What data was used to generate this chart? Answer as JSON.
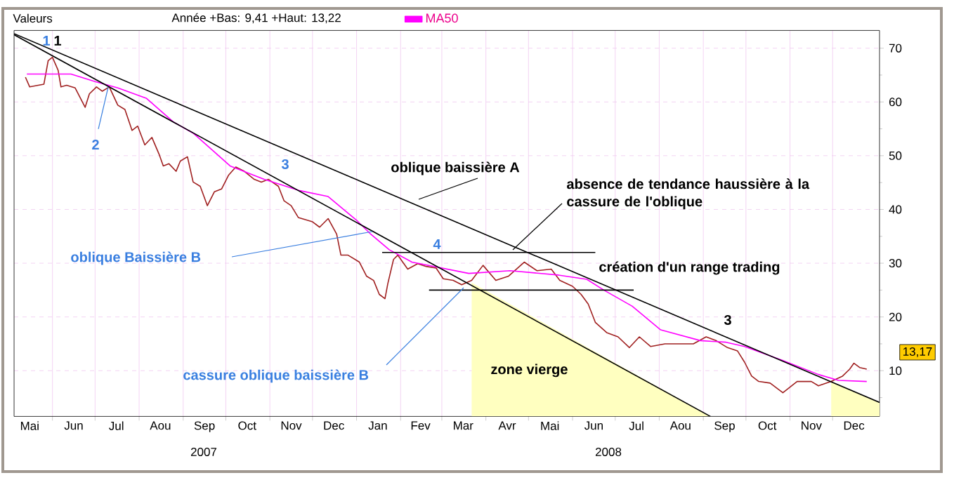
{
  "chart_data": {
    "type": "line",
    "xlim": [
      "2007-05-05",
      "2009-01-03"
    ],
    "ylim": [
      1.5,
      73.3
    ],
    "xticks": [
      {
        "value": "2007-05-16",
        "label": "Mai"
      },
      {
        "value": "2007-06-01",
        "label": null
      },
      {
        "value": "2007-06-16",
        "label": "Jun"
      },
      {
        "value": "2007-07-01",
        "label": null
      },
      {
        "value": "2007-07-16",
        "label": "Jul"
      },
      {
        "value": "2007-08-01",
        "label": null
      },
      {
        "value": "2007-08-16",
        "label": "Aou"
      },
      {
        "value": "2007-09-01",
        "label": null
      },
      {
        "value": "2007-09-16",
        "label": "Sep"
      },
      {
        "value": "2007-10-01",
        "label": null
      },
      {
        "value": "2007-10-16",
        "label": "Oct"
      },
      {
        "value": "2007-11-01",
        "label": null
      },
      {
        "value": "2007-11-16",
        "label": "Nov"
      },
      {
        "value": "2007-12-01",
        "label": null
      },
      {
        "value": "2007-12-16",
        "label": "Dec"
      },
      {
        "value": "2008-01-01",
        "label": null
      },
      {
        "value": "2008-01-16",
        "label": "Jan"
      },
      {
        "value": "2008-02-01",
        "label": null
      },
      {
        "value": "2008-02-15",
        "label": "Fev"
      },
      {
        "value": "2008-03-01",
        "label": null
      },
      {
        "value": "2008-03-16",
        "label": "Mar"
      },
      {
        "value": "2008-04-01",
        "label": null
      },
      {
        "value": "2008-04-16",
        "label": "Avr"
      },
      {
        "value": "2008-05-01",
        "label": null
      },
      {
        "value": "2008-05-16",
        "label": "Mai"
      },
      {
        "value": "2008-06-01",
        "label": null
      },
      {
        "value": "2008-06-16",
        "label": "Jun"
      },
      {
        "value": "2008-07-01",
        "label": null
      },
      {
        "value": "2008-07-16",
        "label": "Jul"
      },
      {
        "value": "2008-08-01",
        "label": null
      },
      {
        "value": "2008-08-16",
        "label": "Aou"
      },
      {
        "value": "2008-09-01",
        "label": null
      },
      {
        "value": "2008-09-16",
        "label": "Sep"
      },
      {
        "value": "2008-10-01",
        "label": null
      },
      {
        "value": "2008-10-16",
        "label": "Oct"
      },
      {
        "value": "2008-11-01",
        "label": null
      },
      {
        "value": "2008-11-16",
        "label": "Nov"
      },
      {
        "value": "2008-12-01",
        "label": null
      },
      {
        "value": "2008-12-16",
        "label": "Dec"
      }
    ],
    "yticks": [
      {
        "value": 5,
        "label": null
      },
      10,
      {
        "value": 15,
        "label": null
      },
      20,
      {
        "value": 25,
        "label": null
      },
      30,
      {
        "value": 35,
        "label": null
      },
      40,
      {
        "value": 45,
        "label": null
      },
      50,
      {
        "value": 55,
        "label": null
      },
      60,
      {
        "value": 65,
        "label": null
      },
      70
    ],
    "grid": true,
    "legend": "top",
    "series": [
      {
        "type": "area",
        "color": "#ffffc0",
        "x": [
          "2008-03-22",
          "2008-09-06"
        ],
        "values": [
          26.4,
          1.5
        ]
      },
      {
        "type": "area",
        "color": "#ffffc0",
        "x": [
          "2008-11-30",
          "2009-01-03"
        ],
        "values": [
          7.9,
          4.1
        ]
      },
      {
        "color": "#a02020",
        "x": [
          "2007-05-13",
          "2007-05-16",
          "2007-05-26",
          "2007-05-29",
          "2007-06-01",
          "2007-06-05",
          "2007-06-07",
          "2007-06-11",
          "2007-06-17",
          "2007-06-24",
          "2007-06-27",
          "2007-07-02",
          "2007-07-06",
          "2007-07-11",
          "2007-07-17",
          "2007-07-22",
          "2007-07-27",
          "2007-07-31",
          "2007-08-05",
          "2007-08-10",
          "2007-08-15",
          "2007-08-18",
          "2007-08-22",
          "2007-08-27",
          "2007-08-30",
          "2007-09-04",
          "2007-09-08",
          "2007-09-13",
          "2007-09-18",
          "2007-09-23",
          "2007-09-28",
          "2007-10-03",
          "2007-10-08",
          "2007-10-14",
          "2007-10-21",
          "2007-10-26",
          "2007-10-31",
          "2007-11-07",
          "2007-11-11",
          "2007-11-16",
          "2007-11-21",
          "2007-11-26",
          "2007-12-01",
          "2007-12-06",
          "2007-12-12",
          "2007-12-18",
          "2007-12-21",
          "2007-12-26",
          "2008-01-03",
          "2008-01-08",
          "2008-01-13",
          "2008-01-17",
          "2008-01-21",
          "2008-01-23",
          "2008-01-27",
          "2008-01-30",
          "2008-02-06",
          "2008-02-13",
          "2008-02-19",
          "2008-02-26",
          "2008-03-02",
          "2008-03-09",
          "2008-03-15",
          "2008-03-22",
          "2008-03-30",
          "2008-04-08",
          "2008-04-17",
          "2008-04-28",
          "2008-05-07",
          "2008-05-17",
          "2008-05-23",
          "2008-06-01",
          "2008-06-07",
          "2008-06-12",
          "2008-06-17",
          "2008-06-25",
          "2008-07-03",
          "2008-07-11",
          "2008-07-18",
          "2008-07-26",
          "2008-08-05",
          "2008-08-15",
          "2008-08-25",
          "2008-09-03",
          "2008-09-10",
          "2008-09-18",
          "2008-09-25",
          "2008-09-30",
          "2008-10-05",
          "2008-10-10",
          "2008-10-18",
          "2008-10-27",
          "2008-11-06",
          "2008-11-16",
          "2008-11-21",
          "2008-11-30",
          "2008-12-08",
          "2008-12-13",
          "2008-12-16",
          "2008-12-20",
          "2008-12-25"
        ],
        "values": [
          64.6,
          62.8,
          63.3,
          67.7,
          68.3,
          65.9,
          62.8,
          63.1,
          62.6,
          59,
          61.5,
          62.8,
          62,
          62.8,
          59.4,
          58.6,
          54.7,
          55.5,
          52,
          53.4,
          50.3,
          48.1,
          48.5,
          47.1,
          49,
          49.8,
          45.1,
          44.3,
          40.7,
          43.3,
          43.8,
          46.4,
          47.9,
          47.1,
          45.6,
          45.1,
          45.6,
          44.3,
          41.6,
          40.7,
          38.5,
          38.1,
          37.7,
          36.7,
          38.3,
          35.4,
          31.5,
          31.5,
          30.2,
          27.6,
          26.8,
          24.2,
          23.4,
          26.2,
          30.7,
          31.5,
          28.9,
          29.9,
          29.4,
          29.1,
          27.1,
          26.8,
          26,
          26.8,
          29.6,
          26.8,
          27.6,
          30.2,
          28.6,
          28.9,
          26.8,
          25.7,
          24.2,
          22.4,
          19,
          17.1,
          16.3,
          14.3,
          16.3,
          14.5,
          15,
          15,
          15,
          16.3,
          15.6,
          14.3,
          13.7,
          11.6,
          9,
          8,
          7.7,
          5.9,
          8,
          8,
          7.2,
          8,
          9,
          10.3,
          11.4,
          10.6,
          10.3
        ]
      },
      {
        "type": "line",
        "name": "MA50",
        "color": "#ff00ff",
        "x": [
          "2007-05-14",
          "2007-06-14",
          "2007-07-01",
          "2007-07-17",
          "2007-08-06",
          "2007-08-25",
          "2007-09-08",
          "2007-10-04",
          "2007-10-28",
          "2007-11-22",
          "2007-12-12",
          "2008-01-01",
          "2008-01-11",
          "2008-01-24",
          "2008-02-09",
          "2008-03-20",
          "2008-04-18",
          "2008-05-22",
          "2008-06-11",
          "2008-06-23",
          "2008-07-13",
          "2008-08-02",
          "2008-08-30",
          "2008-09-17",
          "2008-09-30",
          "2008-10-27",
          "2008-11-21",
          "2008-12-05",
          "2008-12-25"
        ],
        "values": [
          65.2,
          65.2,
          63.8,
          62.6,
          60.7,
          56.3,
          54.2,
          48.1,
          45.6,
          43.5,
          42.4,
          38,
          35.4,
          32.5,
          30.2,
          28.1,
          28.6,
          27.8,
          27,
          25,
          22,
          17.6,
          15.6,
          15.3,
          14.5,
          11.9,
          9.3,
          8.2,
          8
        ]
      },
      {
        "type": "line",
        "color": "#000000",
        "x": [
          "2007-05-05",
          "2009-01-03"
        ],
        "values": [
          72.7,
          4.1
        ]
      },
      {
        "type": "line",
        "color": "#000000",
        "x": [
          "2007-05-05",
          "2008-09-06"
        ],
        "values": [
          72.5,
          1.5
        ]
      },
      {
        "type": "line",
        "color": "#000000",
        "x": [
          "2008-01-19",
          "2008-06-17"
        ],
        "values": [
          32,
          32
        ]
      },
      {
        "type": "line",
        "color": "#000000",
        "x": [
          "2008-02-21",
          "2008-07-14"
        ],
        "values": [
          25,
          25
        ]
      }
    ],
    "annotations": [
      "Valeurs",
      "Année +Bas: 9,41 +Haut: 13,22",
      "1",
      "1",
      "2",
      "3",
      "4",
      "3",
      "oblique baissière A",
      "absence de tendance haussière à la cassure de l'oblique",
      "oblique Baissière B",
      "création d'un range trading",
      "cassure oblique baissière  B",
      "zone vierge",
      "13,17",
      "2007",
      "2008"
    ]
  }
}
